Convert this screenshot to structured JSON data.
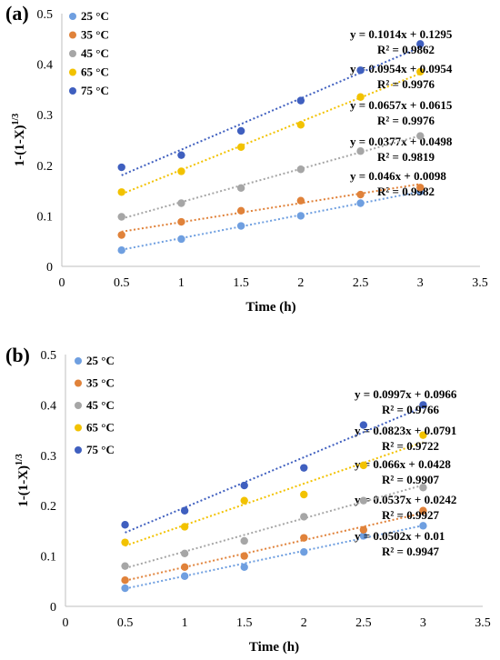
{
  "chart_data": [
    {
      "type": "scatter",
      "panel_label": "(a)",
      "xlabel": "Time (h)",
      "ylabel": "1-(1-X)",
      "ylabel_sup": "1/3",
      "xlim": [
        0,
        3.5
      ],
      "ylim": [
        0,
        0.5
      ],
      "xticks": [
        "0",
        "0.5",
        "1",
        "1.5",
        "2",
        "2.5",
        "3",
        "3.5"
      ],
      "yticks": [
        "0",
        "0.1",
        "0.2",
        "0.3",
        "0.4",
        "0.5"
      ],
      "x": [
        0.5,
        1,
        1.5,
        2,
        2.5,
        3
      ],
      "grid": false,
      "legend_position": "top-left",
      "series": [
        {
          "name": "25 °C",
          "color": "#6f9fe0",
          "values": [
            0.032,
            0.054,
            0.08,
            0.1,
            0.125,
            0.148
          ],
          "equation": "y = 0.046x + 0.0098",
          "r2": "R² = 0.9982",
          "fit": [
            0.046,
            0.0098
          ]
        },
        {
          "name": "35 °C",
          "color": "#e0823a",
          "values": [
            0.062,
            0.088,
            0.11,
            0.13,
            0.142,
            0.156
          ],
          "equation": "y = 0.0377x + 0.0498",
          "r2": "R² = 0.9819",
          "fit": [
            0.0377,
            0.0498
          ]
        },
        {
          "name": "45 °C",
          "color": "#a6a6a6",
          "values": [
            0.098,
            0.125,
            0.155,
            0.192,
            0.228,
            0.258
          ],
          "equation": "y = 0.0657x + 0.0615",
          "r2": "R² = 0.9976",
          "fit": [
            0.0657,
            0.0615
          ]
        },
        {
          "name": "65 °C",
          "color": "#f2c200",
          "values": [
            0.147,
            0.188,
            0.236,
            0.28,
            0.335,
            0.385
          ],
          "equation": "y = 0.0954x + 0.0954",
          "r2": "R² = 0.9976",
          "fit": [
            0.0954,
            0.0954
          ]
        },
        {
          "name": "75 °C",
          "color": "#3f5fbf",
          "values": [
            0.196,
            0.22,
            0.268,
            0.328,
            0.388,
            0.44
          ],
          "equation": "y = 0.1014x + 0.1295",
          "r2": "R² = 0.9862",
          "fit": [
            0.1014,
            0.1295
          ]
        }
      ]
    },
    {
      "type": "scatter",
      "panel_label": "(b)",
      "xlabel": "Time (h)",
      "ylabel": "1-(1-X)",
      "ylabel_sup": "1/3",
      "xlim": [
        0,
        3.5
      ],
      "ylim": [
        0,
        0.5
      ],
      "xticks": [
        "0",
        "0.5",
        "1",
        "1.5",
        "2",
        "2.5",
        "3",
        "3.5"
      ],
      "yticks": [
        "0",
        "0.1",
        "0.2",
        "0.3",
        "0.4",
        "0.5"
      ],
      "x": [
        0.5,
        1,
        1.5,
        2,
        2.5,
        3
      ],
      "grid": false,
      "legend_position": "top-left",
      "series": [
        {
          "name": "25 °C",
          "color": "#6f9fe0",
          "values": [
            0.036,
            0.06,
            0.078,
            0.108,
            0.14,
            0.16
          ],
          "equation": "y = 0.0502x + 0.01",
          "r2": "R² = 0.9947",
          "fit": [
            0.0502,
            0.01
          ]
        },
        {
          "name": "35 °C",
          "color": "#e0823a",
          "values": [
            0.052,
            0.078,
            0.1,
            0.136,
            0.152,
            0.19
          ],
          "equation": "y = 0.0537x + 0.0242",
          "r2": "R² = 0.9927",
          "fit": [
            0.0537,
            0.0242
          ]
        },
        {
          "name": "45 °C",
          "color": "#a6a6a6",
          "values": [
            0.08,
            0.105,
            0.13,
            0.178,
            0.21,
            0.236
          ],
          "equation": "y = 0.066x + 0.0428",
          "r2": "R² = 0.9907",
          "fit": [
            0.066,
            0.0428
          ]
        },
        {
          "name": "65 °C",
          "color": "#f2c200",
          "values": [
            0.127,
            0.158,
            0.21,
            0.222,
            0.28,
            0.34
          ],
          "equation": "y = 0.0823x + 0.0791",
          "r2": "R² = 0.9722",
          "fit": [
            0.0823,
            0.0791
          ]
        },
        {
          "name": "75 °C",
          "color": "#3f5fbf",
          "values": [
            0.162,
            0.19,
            0.24,
            0.275,
            0.36,
            0.4
          ],
          "equation": "y = 0.0997x + 0.0966",
          "r2": "R² = 0.9766",
          "fit": [
            0.0997,
            0.0966
          ]
        }
      ]
    }
  ]
}
